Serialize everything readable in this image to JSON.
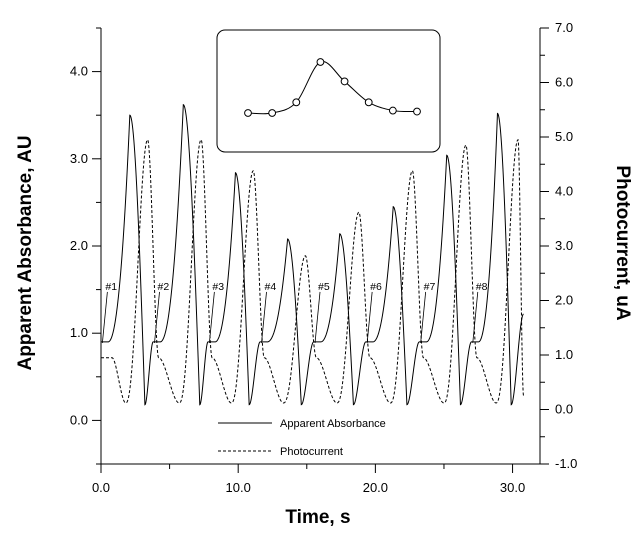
{
  "chart_data": {
    "type": "line",
    "xlabel": "Time, s",
    "ylabel_left": "Apparent Absorbance, AU",
    "ylabel_right": "Photocurrent, uA",
    "xlim": [
      0,
      32
    ],
    "ylim_left": [
      -0.5,
      4.5
    ],
    "ylim_right": [
      -1.0,
      7.0
    ],
    "x_ticks": [
      "0.0",
      "10.0",
      "20.0",
      "30.0"
    ],
    "y_left_ticks": [
      "0.0",
      "1.0",
      "2.0",
      "3.0",
      "4.0"
    ],
    "y_right_ticks": [
      "-1.0",
      "0.0",
      "1.0",
      "2.0",
      "3.0",
      "4.0",
      "5.0",
      "6.0",
      "7.0"
    ],
    "grid": false,
    "legend_position": "bottom-center",
    "series": [
      {
        "name": "Apparent Absorbance",
        "axis": "left",
        "style": "solid",
        "baseline": 0.9,
        "peaks": [
          {
            "label": "#1",
            "start": 0.0,
            "peak_time": 2.1,
            "peak_value": 3.5,
            "min_time": 3.2,
            "min_value": 0.18
          },
          {
            "label": "#2",
            "start": 3.8,
            "peak_time": 6.0,
            "peak_value": 3.62,
            "min_time": 7.2,
            "min_value": 0.18
          },
          {
            "label": "#3",
            "start": 7.8,
            "peak_time": 9.8,
            "peak_value": 2.84,
            "min_time": 10.8,
            "min_value": 0.18
          },
          {
            "label": "#4",
            "start": 11.6,
            "peak_time": 13.6,
            "peak_value": 2.08,
            "min_time": 14.6,
            "min_value": 0.18
          },
          {
            "label": "#5",
            "start": 15.5,
            "peak_time": 17.4,
            "peak_value": 2.14,
            "min_time": 18.4,
            "min_value": 0.18
          },
          {
            "label": "#6",
            "start": 19.3,
            "peak_time": 21.3,
            "peak_value": 2.45,
            "min_time": 22.3,
            "min_value": 0.18
          },
          {
            "label": "#7",
            "start": 23.2,
            "peak_time": 25.2,
            "peak_value": 3.04,
            "min_time": 26.2,
            "min_value": 0.18
          },
          {
            "label": "#8",
            "start": 27.0,
            "peak_time": 28.9,
            "peak_value": 3.52,
            "min_time": 29.9,
            "min_value": 0.18
          }
        ],
        "end_time": 30.8,
        "end_value": 1.22
      },
      {
        "name": "Photocurrent",
        "axis": "right",
        "style": "dashed",
        "baseline": 0.95,
        "peaks": [
          {
            "peak_time": 3.4,
            "peak_value": 4.95,
            "min_time": 1.8,
            "min_value": 0.12
          },
          {
            "peak_time": 7.3,
            "peak_value": 4.95,
            "min_time": 5.7,
            "min_value": 0.12
          },
          {
            "peak_time": 11.1,
            "peak_value": 4.38,
            "min_time": 9.5,
            "min_value": 0.12
          },
          {
            "peak_time": 14.9,
            "peak_value": 2.82,
            "min_time": 13.3,
            "min_value": 0.12
          },
          {
            "peak_time": 18.8,
            "peak_value": 3.62,
            "min_time": 17.2,
            "min_value": 0.12
          },
          {
            "peak_time": 22.7,
            "peak_value": 4.38,
            "min_time": 21.1,
            "min_value": 0.12
          },
          {
            "peak_time": 26.6,
            "peak_value": 4.85,
            "min_time": 25.0,
            "min_value": 0.12
          },
          {
            "peak_time": 30.4,
            "peak_value": 4.95,
            "min_time": 28.8,
            "min_value": 0.12
          }
        ],
        "end_time": 30.8,
        "end_value": 0.25
      }
    ],
    "inset": {
      "type": "line",
      "markers": "open-circle",
      "values": [
        1.0,
        1.0,
        1.22,
        2.05,
        1.65,
        1.22,
        1.05,
        1.03
      ]
    }
  },
  "legend": {
    "absorbance_label": "Apparent Absorbance",
    "photocurrent_label": "Photocurrent"
  },
  "axis_titles": {
    "x": "Time, s",
    "y_left": "Apparent Absorbance, AU",
    "y_right": "Photocurrent, uA"
  }
}
